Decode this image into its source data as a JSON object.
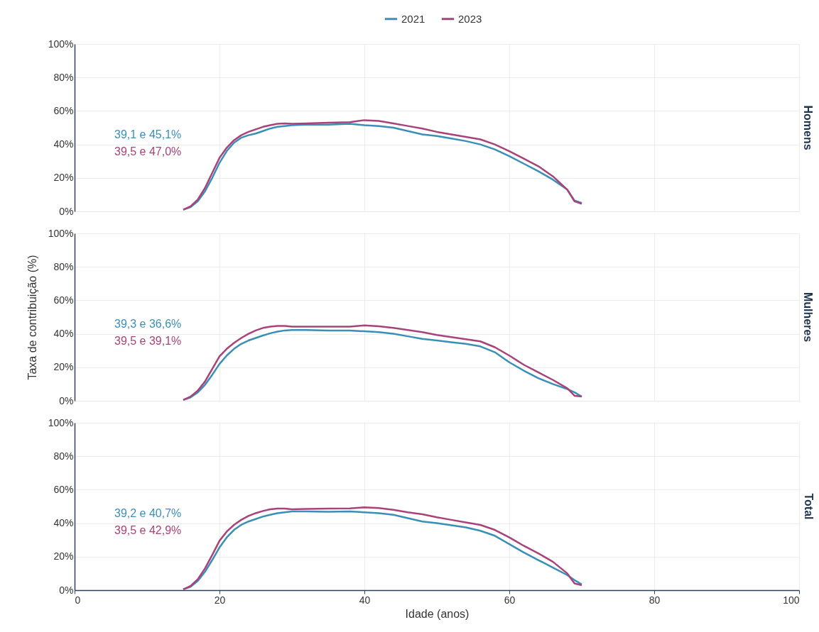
{
  "chart_data": [
    {
      "type": "line",
      "title": "Homens",
      "legend": "top",
      "grid": true,
      "tick_labels": "y",
      "x": [
        15,
        16,
        17,
        18,
        19,
        20,
        21,
        22,
        23,
        24,
        25,
        26,
        27,
        28,
        29,
        30,
        32,
        35,
        38,
        40,
        42,
        44,
        46,
        48,
        50,
        52,
        54,
        56,
        58,
        60,
        62,
        64,
        66,
        68,
        69,
        70
      ],
      "xlim": [
        0,
        100
      ],
      "xticks": [
        0,
        20,
        40,
        60,
        80,
        100
      ],
      "ylim": [
        0,
        100
      ],
      "yticks": [
        {
          "value": 0,
          "label": "0%"
        },
        {
          "value": 20,
          "label": "20%"
        },
        {
          "value": 40,
          "label": "40%"
        },
        {
          "value": 60,
          "label": "60%"
        },
        {
          "value": 80,
          "label": "80%"
        },
        {
          "value": 100,
          "label": "100%"
        }
      ],
      "series": [
        {
          "name": "2021",
          "color": "#3a8fb7",
          "values": [
            1,
            2.5,
            6,
            12,
            20,
            29,
            36,
            41,
            44,
            45.5,
            46.5,
            48,
            49.5,
            50.5,
            51,
            51.5,
            51.8,
            51.8,
            52.3,
            51.5,
            51,
            50,
            48,
            46,
            45,
            43.5,
            42,
            40,
            37,
            33,
            28.5,
            24,
            19,
            13,
            6.5,
            5
          ]
        },
        {
          "name": "2023",
          "color": "#a8437a",
          "values": [
            1,
            3,
            7,
            14,
            23,
            32,
            38,
            42.5,
            45.5,
            47.5,
            49,
            50.5,
            51.5,
            52.3,
            52.5,
            52.3,
            52.5,
            53,
            53.3,
            54.5,
            54,
            52.5,
            51,
            49.5,
            47.5,
            46,
            44.5,
            43,
            40,
            36,
            31.5,
            27,
            21,
            13,
            6,
            4.5
          ]
        }
      ],
      "annotations": [
        "39,1 e 45,1%",
        "39,5 e 47,0%"
      ]
    },
    {
      "type": "line",
      "title": "Mulheres",
      "ylabel": "Taxa de contribuição (%)",
      "grid": true,
      "tick_labels": "y",
      "x": [
        15,
        16,
        17,
        18,
        19,
        20,
        21,
        22,
        23,
        24,
        25,
        26,
        27,
        28,
        29,
        30,
        32,
        35,
        38,
        40,
        42,
        44,
        46,
        48,
        50,
        52,
        54,
        56,
        58,
        60,
        62,
        64,
        66,
        68,
        69,
        70
      ],
      "xlim": [
        0,
        100
      ],
      "xticks": [
        0,
        20,
        40,
        60,
        80,
        100
      ],
      "ylim": [
        0,
        100
      ],
      "yticks": [
        {
          "value": 0,
          "label": "0%"
        },
        {
          "value": 20,
          "label": "20%"
        },
        {
          "value": 40,
          "label": "40%"
        },
        {
          "value": 60,
          "label": "60%"
        },
        {
          "value": 80,
          "label": "80%"
        },
        {
          "value": 100,
          "label": "100%"
        }
      ],
      "series": [
        {
          "name": "2021",
          "color": "#3a8fb7",
          "values": [
            0.5,
            2,
            5,
            9.5,
            15.5,
            22,
            27,
            31,
            34,
            36,
            37.5,
            39,
            40.3,
            41.3,
            42,
            42.3,
            42.3,
            42,
            42,
            41.5,
            41,
            40,
            38.5,
            37,
            36,
            35,
            34,
            32.5,
            29,
            23,
            18,
            13.5,
            10,
            7,
            5,
            2.5
          ]
        },
        {
          "name": "2023",
          "color": "#a8437a",
          "values": [
            0.5,
            2.5,
            6,
            11.5,
            19,
            26.5,
            31,
            34.5,
            37.5,
            40,
            42,
            43.5,
            44.3,
            44.7,
            44.7,
            44.3,
            44.3,
            44.3,
            44.3,
            45,
            44.5,
            43.5,
            42.3,
            41,
            39.3,
            38,
            36.8,
            35.5,
            32,
            27,
            21.5,
            17,
            12.5,
            7.5,
            3,
            2.5
          ]
        }
      ],
      "annotations": [
        "39,3 e 36,6%",
        "39,5 e 39,1%"
      ]
    },
    {
      "type": "line",
      "title": "Total",
      "xlabel": "Idade (anos)",
      "grid": true,
      "x": [
        15,
        16,
        17,
        18,
        19,
        20,
        21,
        22,
        23,
        24,
        25,
        26,
        27,
        28,
        29,
        30,
        32,
        35,
        38,
        40,
        42,
        44,
        46,
        48,
        50,
        52,
        54,
        56,
        58,
        60,
        62,
        64,
        66,
        68,
        69,
        70
      ],
      "xlim": [
        0,
        100
      ],
      "xticks": [
        0,
        20,
        40,
        60,
        80,
        100
      ],
      "ylim": [
        0,
        100
      ],
      "yticks": [
        {
          "value": 0,
          "label": "0%"
        },
        {
          "value": 20,
          "label": "20%"
        },
        {
          "value": 40,
          "label": "40%"
        },
        {
          "value": 60,
          "label": "60%"
        },
        {
          "value": 80,
          "label": "80%"
        },
        {
          "value": 100,
          "label": "100%"
        }
      ],
      "series": [
        {
          "name": "2021",
          "color": "#3a8fb7",
          "values": [
            0.5,
            2,
            5.5,
            11,
            18,
            25.5,
            31.5,
            36,
            39,
            41,
            42.5,
            44,
            45,
            46,
            46.5,
            47,
            47,
            46.8,
            47,
            46.5,
            46,
            45,
            43,
            41,
            40,
            38.8,
            37.5,
            35.5,
            32.5,
            27.5,
            22.5,
            18,
            13.5,
            9,
            6,
            3.5
          ]
        },
        {
          "name": "2023",
          "color": "#a8437a",
          "values": [
            0.5,
            2.5,
            6.5,
            13,
            21,
            29.5,
            35,
            39,
            42,
            44.3,
            46,
            47.3,
            48.3,
            48.7,
            48.7,
            48.3,
            48.5,
            48.7,
            48.8,
            49.5,
            49,
            48,
            46.5,
            45.3,
            43.5,
            42,
            40.5,
            39,
            36,
            31.5,
            26.5,
            22,
            17,
            10,
            4,
            3
          ]
        }
      ],
      "annotations": [
        "39,2 e 40,7%",
        "39,5 e 42,9%"
      ]
    }
  ]
}
